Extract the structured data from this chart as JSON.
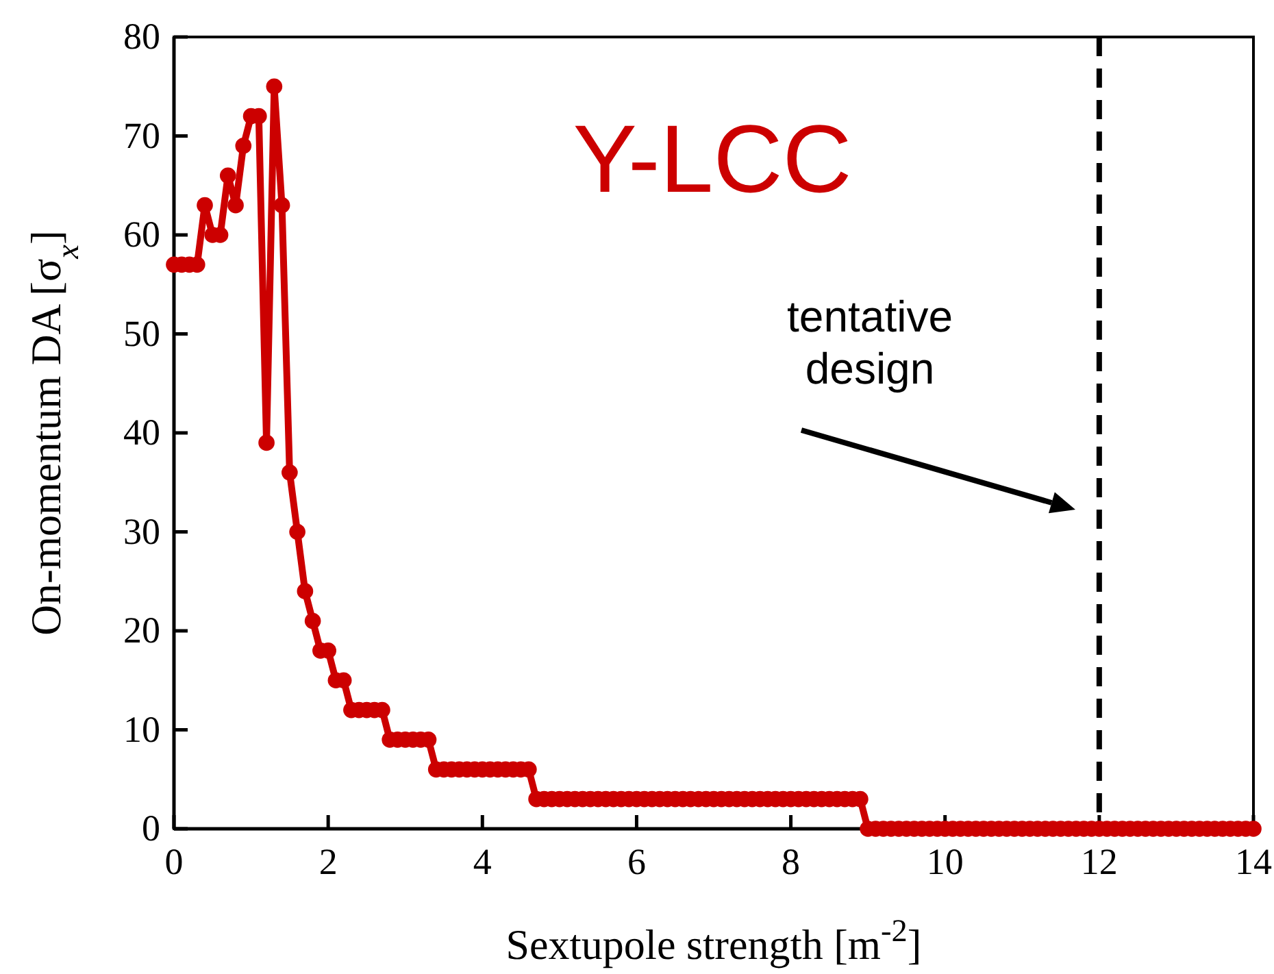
{
  "chart_data": {
    "type": "line",
    "title": "Y-LCC",
    "xlabel": "Sextupole strength [m$^{-2}$]",
    "ylabel": "On-momentum DA [σ$_{x}$]",
    "x": [
      0,
      0.1,
      0.2,
      0.3,
      0.4,
      0.5,
      0.6,
      0.7,
      0.8,
      0.9,
      1,
      1.1,
      1.2,
      1.3,
      1.4,
      1.5,
      1.6,
      1.7,
      1.8,
      1.9,
      2,
      2.1,
      2.2,
      2.3,
      2.4,
      2.5,
      2.6,
      2.7,
      2.8,
      2.9,
      3,
      3.1,
      3.2,
      3.3,
      3.4,
      3.5,
      3.6,
      3.7,
      3.8,
      3.9,
      4,
      4.1,
      4.2,
      4.3,
      4.4,
      4.5,
      4.6,
      4.7,
      4.8,
      4.9,
      5,
      5.1,
      5.2,
      5.3,
      5.4,
      5.5,
      5.6,
      5.7,
      5.8,
      5.9,
      6,
      6.1,
      6.2,
      6.3,
      6.4,
      6.5,
      6.6,
      6.7,
      6.8,
      6.9,
      7,
      7.1,
      7.2,
      7.3,
      7.4,
      7.5,
      7.6,
      7.7,
      7.8,
      7.9,
      8,
      8.1,
      8.2,
      8.3,
      8.4,
      8.5,
      8.6,
      8.7,
      8.8,
      8.9,
      9,
      9.1,
      9.2,
      9.3,
      9.4,
      9.5,
      9.6,
      9.7,
      9.8,
      9.9,
      10,
      10.1,
      10.2,
      10.3,
      10.4,
      10.5,
      10.6,
      10.7,
      10.8,
      10.9,
      11,
      11.1,
      11.2,
      11.3,
      11.4,
      11.5,
      11.6,
      11.7,
      11.8,
      11.9,
      12,
      12.1,
      12.2,
      12.3,
      12.4,
      12.5,
      12.6,
      12.7,
      12.8,
      12.9,
      13,
      13.1,
      13.2,
      13.3,
      13.4,
      13.5,
      13.6,
      13.7,
      13.8,
      13.9,
      14
    ],
    "series": [
      {
        "color": "#cc0000",
        "values": [
          57,
          57,
          57,
          57,
          63,
          60,
          60,
          66,
          63,
          69,
          72,
          72,
          39,
          75,
          63,
          36,
          30,
          24,
          21,
          18,
          18,
          15,
          15,
          12,
          12,
          12,
          12,
          12,
          9,
          9,
          9,
          9,
          9,
          9,
          6,
          6,
          6,
          6,
          6,
          6,
          6,
          6,
          6,
          6,
          6,
          6,
          6,
          3,
          3,
          3,
          3,
          3,
          3,
          3,
          3,
          3,
          3,
          3,
          3,
          3,
          3,
          3,
          3,
          3,
          3,
          3,
          3,
          3,
          3,
          3,
          3,
          3,
          3,
          3,
          3,
          3,
          3,
          3,
          3,
          3,
          3,
          3,
          3,
          3,
          3,
          3,
          3,
          3,
          3,
          3,
          0,
          0,
          0,
          0,
          0,
          0,
          0,
          0,
          0,
          0,
          0,
          0,
          0,
          0,
          0,
          0,
          0,
          0,
          0,
          0,
          0,
          0,
          0,
          0,
          0,
          0,
          0,
          0,
          0,
          0,
          0,
          0,
          0,
          0,
          0,
          0,
          0,
          0,
          0,
          0,
          0,
          0,
          0,
          0,
          0,
          0,
          0,
          0,
          0,
          0,
          0
        ]
      }
    ],
    "xlim": [
      0,
      14
    ],
    "xticks": [
      0,
      2,
      4,
      6,
      8,
      10,
      12,
      14
    ],
    "ylim": [
      0,
      80
    ],
    "yticks": [
      0,
      10,
      20,
      30,
      40,
      50,
      60,
      70,
      80
    ],
    "grid": false,
    "marker": "circle",
    "line_style": "solid",
    "ref_lines": [
      {
        "axis": "x",
        "value": 12,
        "color": "#000000",
        "line_style": "dashed"
      }
    ],
    "annotations": [
      "tentative design"
    ]
  }
}
